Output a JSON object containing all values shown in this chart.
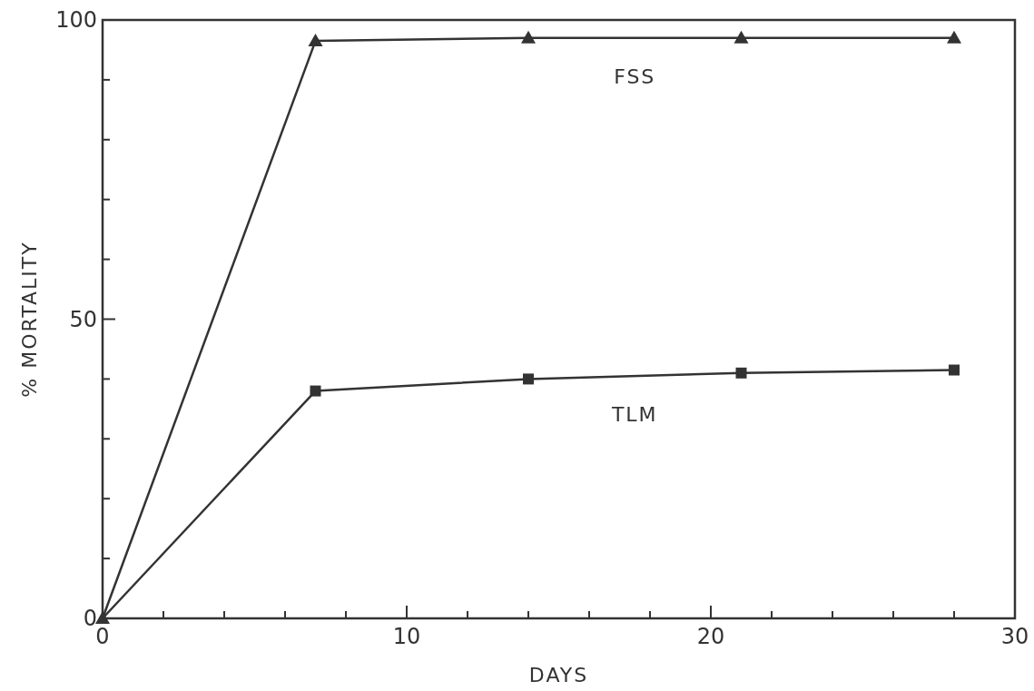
{
  "chart_data": {
    "type": "line",
    "xlabel": "DAYS",
    "ylabel": "% MORTALITY",
    "xlim": [
      0,
      30
    ],
    "ylim": [
      0,
      100
    ],
    "xticks": [
      0,
      {
        "value": 2,
        "label": null
      },
      {
        "value": 4,
        "label": null
      },
      {
        "value": 6,
        "label": null
      },
      {
        "value": 8,
        "label": null
      },
      10,
      {
        "value": 12,
        "label": null
      },
      {
        "value": 14,
        "label": null
      },
      {
        "value": 16,
        "label": null
      },
      {
        "value": 18,
        "label": null
      },
      20,
      {
        "value": 22,
        "label": null
      },
      {
        "value": 24,
        "label": null
      },
      {
        "value": 26,
        "label": null
      },
      {
        "value": 28,
        "label": null
      },
      30
    ],
    "yticks": [
      0,
      {
        "value": 10,
        "label": null
      },
      {
        "value": 20,
        "label": null
      },
      {
        "value": 30,
        "label": null
      },
      {
        "value": 40,
        "label": null
      },
      50,
      {
        "value": 60,
        "label": null
      },
      {
        "value": 70,
        "label": null
      },
      {
        "value": 80,
        "label": null
      },
      {
        "value": 90,
        "label": null
      },
      100
    ],
    "grid": false,
    "legend": false,
    "line_style": "solid",
    "x": [
      0,
      7,
      14,
      21,
      28
    ],
    "series": [
      {
        "name": "FSS",
        "color": "#333333",
        "marker": "triangle",
        "values": [
          0,
          96.5,
          97,
          97,
          97
        ]
      },
      {
        "name": "TLM",
        "color": "#333333",
        "marker": "square",
        "values": [
          0,
          38,
          40,
          41,
          41.5
        ]
      }
    ]
  }
}
